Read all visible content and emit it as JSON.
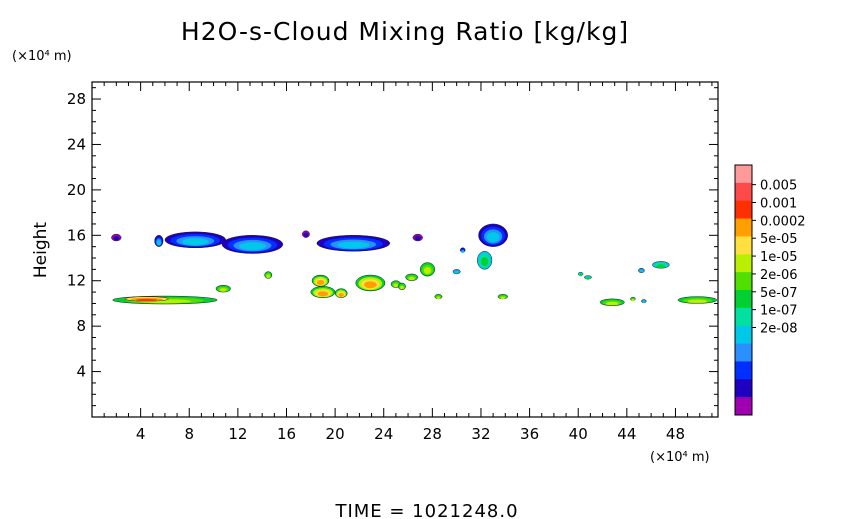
{
  "chart_data": {
    "type": "heatmap",
    "title": "H2O-s-Cloud Mixing Ratio [kg/kg]",
    "ylabel": "Height",
    "x_unit": "(×10⁴ m)",
    "y_unit": "(×10⁴ m)",
    "xlim": [
      0,
      51.5
    ],
    "ylim": [
      0,
      29.5
    ],
    "x_ticks": [
      4,
      8,
      12,
      16,
      20,
      24,
      28,
      32,
      36,
      40,
      44,
      48
    ],
    "y_ticks": [
      4,
      8,
      12,
      16,
      20,
      24,
      28
    ],
    "footer": "TIME = 1021248.0",
    "colorbar": {
      "labels": [
        "0.005",
        "0.001",
        "0.0002",
        "5e-05",
        "1e-05",
        "2e-06",
        "5e-07",
        "1e-07",
        "2e-08"
      ],
      "colors": [
        "#ff9a9a",
        "#ff4a4a",
        "#ff3000",
        "#ffa000",
        "#ffe040",
        "#b8f000",
        "#50e000",
        "#00d030",
        "#00e0a0",
        "#00c8e8",
        "#2a90ff",
        "#0030ff",
        "#2000c0",
        "#a000b0"
      ]
    },
    "regions": [
      {
        "cx": 2.0,
        "cy": 15.8,
        "rx": 0.4,
        "ry": 0.3,
        "level": "2e-08"
      },
      {
        "cx": 5.5,
        "cy": 15.5,
        "rx": 0.35,
        "ry": 0.5,
        "level": "1e-07"
      },
      {
        "cx": 8.5,
        "cy": 15.6,
        "rx": 2.5,
        "ry": 0.7,
        "level": "1e-07"
      },
      {
        "cx": 13.2,
        "cy": 15.2,
        "rx": 2.5,
        "ry": 0.8,
        "level": "1e-07"
      },
      {
        "cx": 17.6,
        "cy": 16.1,
        "rx": 0.3,
        "ry": 0.3,
        "level": "2e-08"
      },
      {
        "cx": 21.5,
        "cy": 15.3,
        "rx": 3.0,
        "ry": 0.7,
        "level": "1e-07"
      },
      {
        "cx": 26.8,
        "cy": 15.8,
        "rx": 0.4,
        "ry": 0.3,
        "level": "2e-08"
      },
      {
        "cx": 30.5,
        "cy": 14.7,
        "rx": 0.2,
        "ry": 0.2,
        "level": "1e-07"
      },
      {
        "cx": 33.0,
        "cy": 16.0,
        "rx": 1.2,
        "ry": 1.0,
        "level": "1e-07"
      },
      {
        "cx": 32.3,
        "cy": 13.8,
        "rx": 0.6,
        "ry": 0.8,
        "level": "2e-06"
      },
      {
        "cx": 30.0,
        "cy": 12.8,
        "rx": 0.3,
        "ry": 0.2,
        "level": "5e-07"
      },
      {
        "cx": 27.6,
        "cy": 13.0,
        "rx": 0.6,
        "ry": 0.6,
        "level": "1e-05"
      },
      {
        "cx": 26.3,
        "cy": 12.3,
        "rx": 0.5,
        "ry": 0.3,
        "level": "1e-05"
      },
      {
        "cx": 14.5,
        "cy": 12.5,
        "rx": 0.3,
        "ry": 0.3,
        "level": "1e-05"
      },
      {
        "cx": 18.8,
        "cy": 12.0,
        "rx": 0.7,
        "ry": 0.5,
        "level": "5e-05"
      },
      {
        "cx": 19.0,
        "cy": 11.0,
        "rx": 1.0,
        "ry": 0.5,
        "level": "5e-05"
      },
      {
        "cx": 20.5,
        "cy": 10.9,
        "rx": 0.5,
        "ry": 0.4,
        "level": "5e-05"
      },
      {
        "cx": 22.9,
        "cy": 11.8,
        "rx": 1.2,
        "ry": 0.7,
        "level": "5e-05"
      },
      {
        "cx": 25.0,
        "cy": 11.7,
        "rx": 0.4,
        "ry": 0.3,
        "level": "1e-05"
      },
      {
        "cx": 25.5,
        "cy": 11.5,
        "rx": 0.3,
        "ry": 0.3,
        "level": "1e-05"
      },
      {
        "cx": 28.5,
        "cy": 10.6,
        "rx": 0.3,
        "ry": 0.2,
        "level": "1e-05"
      },
      {
        "cx": 33.8,
        "cy": 10.6,
        "rx": 0.4,
        "ry": 0.2,
        "level": "1e-05"
      },
      {
        "cx": 6.0,
        "cy": 10.3,
        "rx": 4.3,
        "ry": 0.35,
        "level": "1e-05"
      },
      {
        "cx": 4.5,
        "cy": 10.4,
        "rx": 1.8,
        "ry": 0.2,
        "level": "0.0002"
      },
      {
        "cx": 10.8,
        "cy": 11.3,
        "rx": 0.6,
        "ry": 0.3,
        "level": "1e-05"
      },
      {
        "cx": 40.2,
        "cy": 12.6,
        "rx": 0.2,
        "ry": 0.15,
        "level": "2e-06"
      },
      {
        "cx": 40.8,
        "cy": 12.3,
        "rx": 0.3,
        "ry": 0.15,
        "level": "2e-06"
      },
      {
        "cx": 42.8,
        "cy": 10.1,
        "rx": 1.0,
        "ry": 0.3,
        "level": "1e-05"
      },
      {
        "cx": 44.5,
        "cy": 10.4,
        "rx": 0.2,
        "ry": 0.15,
        "level": "1e-05"
      },
      {
        "cx": 45.2,
        "cy": 12.9,
        "rx": 0.25,
        "ry": 0.2,
        "level": "5e-07"
      },
      {
        "cx": 46.8,
        "cy": 13.4,
        "rx": 0.7,
        "ry": 0.3,
        "level": "2e-06"
      },
      {
        "cx": 45.4,
        "cy": 10.2,
        "rx": 0.2,
        "ry": 0.15,
        "level": "5e-07"
      },
      {
        "cx": 49.8,
        "cy": 10.3,
        "rx": 1.6,
        "ry": 0.3,
        "level": "1e-05"
      }
    ]
  }
}
